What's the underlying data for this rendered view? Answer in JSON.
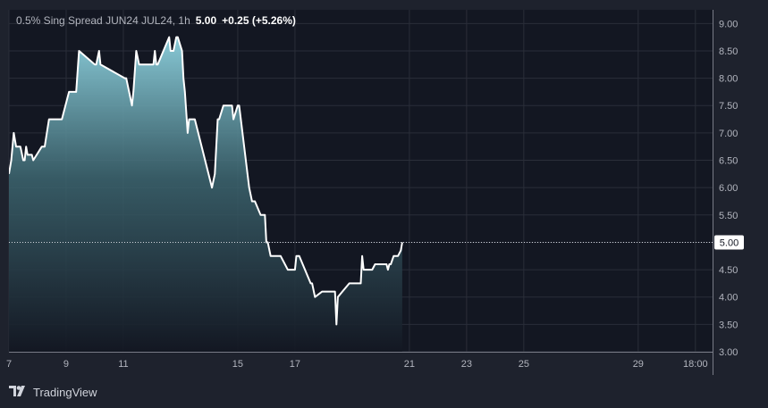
{
  "legend": {
    "symbol": "0.5% Sing Spread JUN24 JUL24, 1h",
    "last": "5.00",
    "change": "+0.25 (+5.26%)"
  },
  "price_tag": "5.00",
  "brand": "TradingView",
  "colors": {
    "background": "#131722",
    "frame": "#1e222d",
    "line": "#ffffff",
    "area_top": "#8fd3e0",
    "grid": "#2a2e39"
  },
  "icons": {
    "brand": "tradingview-logo-icon"
  },
  "chart_data": {
    "type": "area",
    "title": "0.5% Sing Spread JUN24 JUL24, 1h",
    "xlabel": "",
    "ylabel": "",
    "grid": true,
    "legend": "top-left",
    "ylim": [
      3.0,
      9.25
    ],
    "xlim": [
      7,
      31.6
    ],
    "x_ticks": [
      {
        "x": 7,
        "label": "7"
      },
      {
        "x": 9,
        "label": "9"
      },
      {
        "x": 11,
        "label": "11"
      },
      {
        "x": 15,
        "label": "15"
      },
      {
        "x": 17,
        "label": "17"
      },
      {
        "x": 21,
        "label": "21"
      },
      {
        "x": 23,
        "label": "23"
      },
      {
        "x": 25,
        "label": "25"
      },
      {
        "x": 29,
        "label": "29"
      },
      {
        "x": 31,
        "label": "18:00"
      }
    ],
    "y_ticks": [
      "9.00",
      "8.50",
      "8.00",
      "7.50",
      "7.00",
      "6.50",
      "6.00",
      "5.50",
      "5.00",
      "4.50",
      "4.00",
      "3.50",
      "3.00"
    ],
    "last_value": 5.0,
    "series": [
      {
        "x": [
          7.0,
          7.08,
          7.17,
          7.25,
          7.4,
          7.5,
          7.55,
          7.6,
          7.65,
          7.75,
          7.8,
          7.85,
          8.15,
          8.2,
          8.25,
          8.4,
          8.85,
          9.1,
          9.2,
          9.35,
          9.45,
          10.0,
          10.05,
          10.15,
          10.2,
          11.05,
          11.1,
          11.3,
          11.35,
          11.45,
          11.55,
          12.05,
          12.1,
          12.15,
          12.2,
          12.6,
          12.65,
          12.75,
          12.85,
          12.9,
          13.05,
          13.1,
          13.15,
          13.25,
          13.3,
          13.45,
          13.5,
          14.1,
          14.2,
          14.3,
          14.35,
          14.5,
          14.8,
          14.85,
          15.0,
          15.05,
          15.4,
          15.5,
          15.6,
          15.8,
          15.9,
          15.95,
          16.0,
          16.05,
          16.15,
          16.2,
          16.3,
          16.5,
          16.75,
          16.8,
          16.85,
          17.0,
          17.05,
          17.1,
          17.15,
          17.55,
          17.6,
          17.7,
          17.95,
          18.0,
          18.05,
          18.1,
          18.4,
          18.45,
          18.5,
          18.9,
          19.0,
          19.05,
          19.3,
          19.35,
          19.4,
          19.5,
          19.65,
          19.7,
          19.8,
          19.9,
          19.95,
          20.0,
          20.1,
          20.2,
          20.25,
          20.3,
          20.35,
          20.45,
          20.5,
          20.6,
          20.7,
          20.75
        ],
        "y": [
          6.25,
          6.5,
          7.0,
          6.75,
          6.75,
          6.5,
          6.5,
          6.75,
          6.6,
          6.6,
          6.6,
          6.5,
          6.75,
          6.75,
          6.75,
          7.25,
          7.25,
          7.75,
          7.75,
          7.75,
          8.5,
          8.25,
          8.25,
          8.5,
          8.25,
          8.0,
          8.0,
          7.5,
          7.75,
          8.5,
          8.25,
          8.25,
          8.5,
          8.25,
          8.25,
          8.75,
          8.5,
          8.5,
          8.75,
          8.75,
          8.5,
          8.0,
          7.75,
          7.0,
          7.25,
          7.25,
          7.25,
          6.0,
          6.25,
          7.25,
          7.25,
          7.5,
          7.5,
          7.25,
          7.5,
          7.5,
          6.0,
          5.75,
          5.75,
          5.5,
          5.5,
          5.5,
          5.0,
          5.0,
          4.75,
          4.75,
          4.75,
          4.75,
          4.5,
          4.5,
          4.5,
          4.5,
          4.75,
          4.75,
          4.75,
          4.25,
          4.25,
          4.0,
          4.1,
          4.1,
          4.1,
          4.1,
          4.1,
          3.5,
          4.0,
          4.25,
          4.25,
          4.25,
          4.25,
          4.75,
          4.5,
          4.5,
          4.5,
          4.5,
          4.6,
          4.6,
          4.6,
          4.6,
          4.6,
          4.6,
          4.5,
          4.6,
          4.6,
          4.75,
          4.75,
          4.75,
          4.85,
          5.0
        ]
      }
    ]
  }
}
